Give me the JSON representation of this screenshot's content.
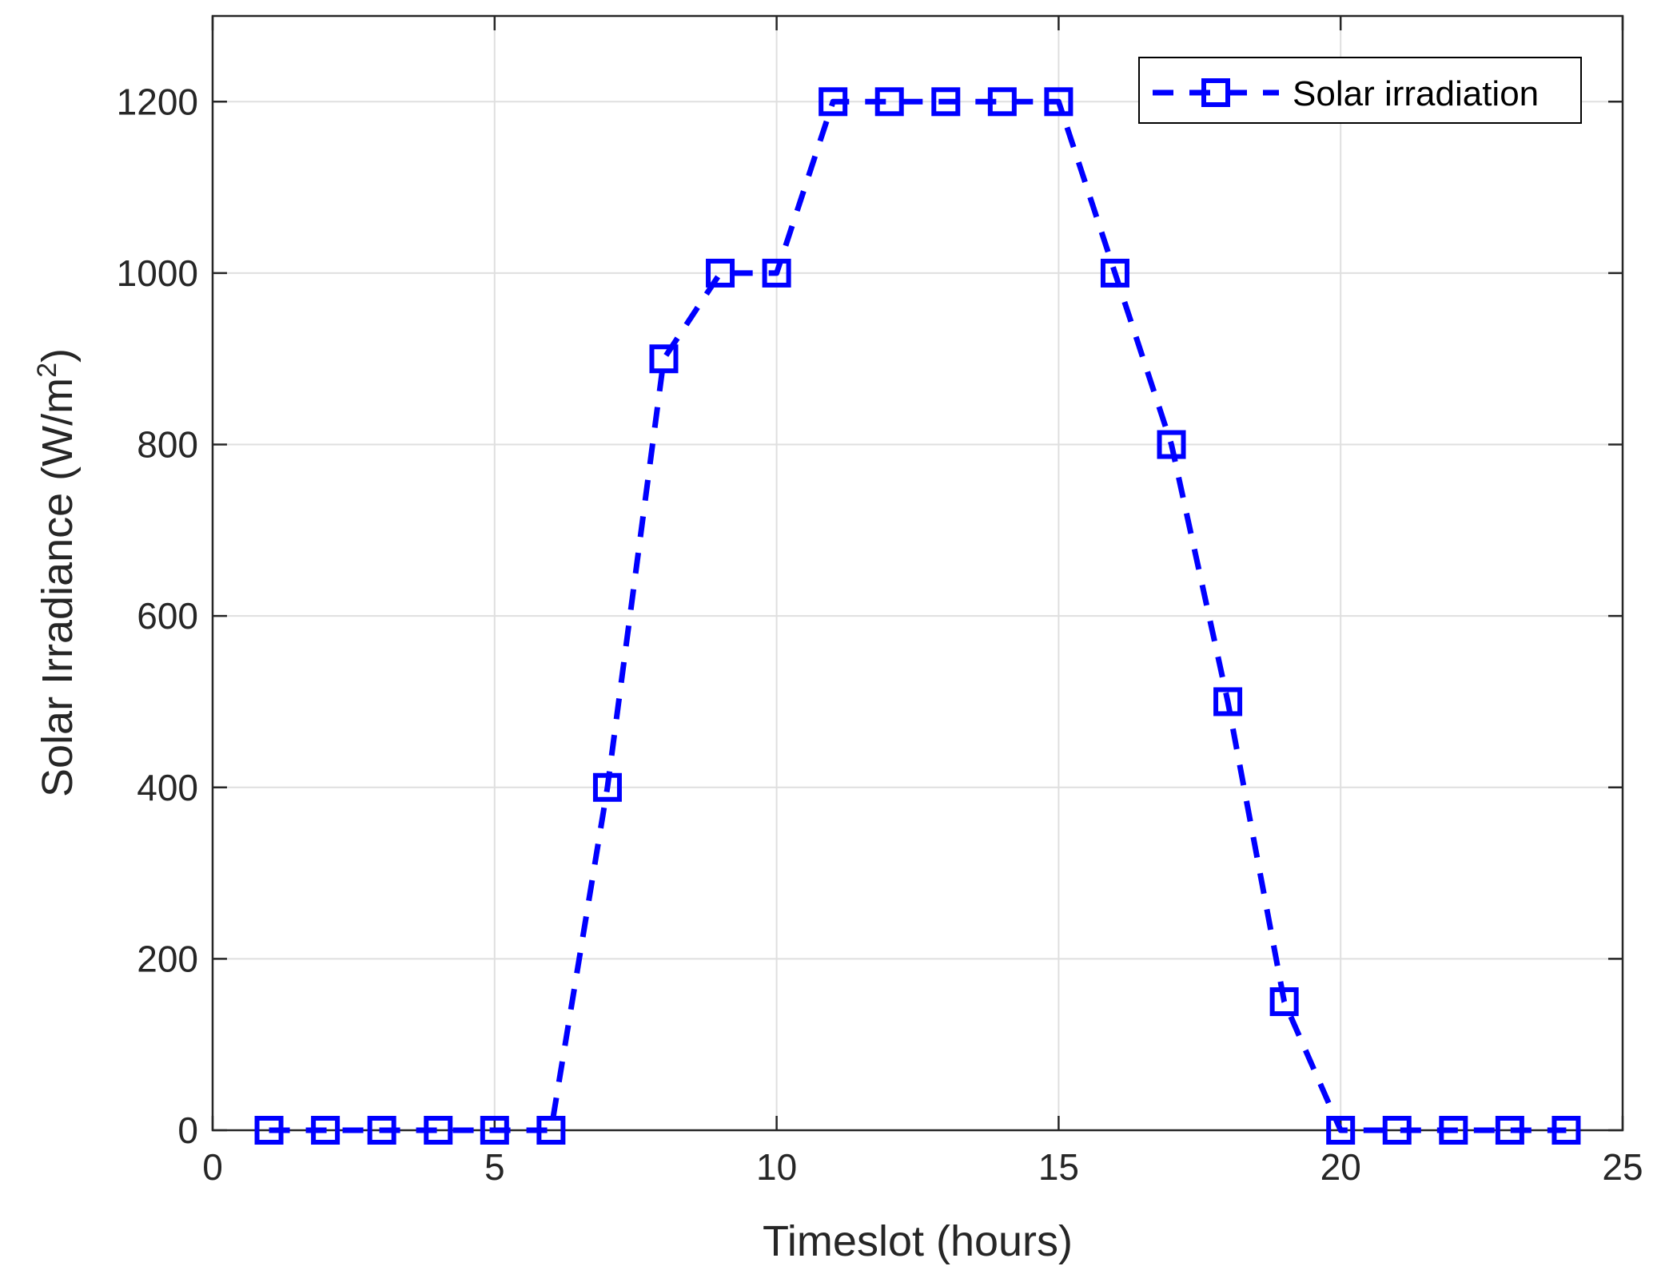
{
  "chart_data": {
    "type": "line",
    "title": "",
    "xlabel": "Timeslot (hours)",
    "ylabel": "Solar Irradiance (W/m",
    "ylabel_superscript": "2",
    "ylabel_suffix": ")",
    "xlim": [
      0,
      25
    ],
    "ylim": [
      0,
      1300
    ],
    "xticks": [
      0,
      5,
      10,
      15,
      20,
      25
    ],
    "yticks": [
      0,
      200,
      400,
      600,
      800,
      1000,
      1200
    ],
    "grid": true,
    "legend_position": "top-right",
    "series": [
      {
        "name": "Solar irradiation",
        "color": "#0000ff",
        "line_style": "dashed",
        "marker": "square",
        "x": [
          1,
          2,
          3,
          4,
          5,
          6,
          7,
          8,
          9,
          10,
          11,
          12,
          13,
          14,
          15,
          16,
          17,
          18,
          19,
          20,
          21,
          22,
          23,
          24
        ],
        "y": [
          0,
          0,
          0,
          0,
          0,
          0,
          400,
          900,
          1000,
          1000,
          1200,
          1200,
          1200,
          1200,
          1200,
          1000,
          800,
          500,
          150,
          0,
          0,
          0,
          0,
          0
        ]
      }
    ]
  }
}
